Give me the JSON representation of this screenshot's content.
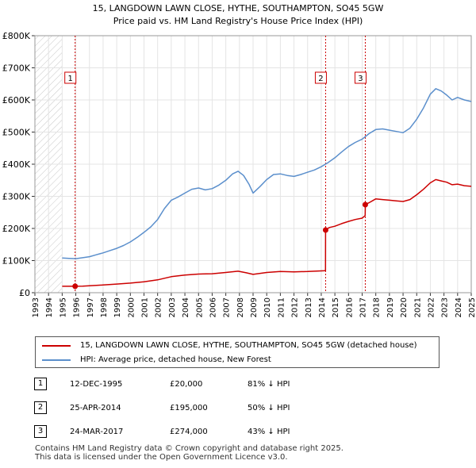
{
  "chart_data": {
    "type": "line",
    "title": "15, LANGDOWN LAWN CLOSE, HYTHE, SOUTHAMPTON, SO45 5GW",
    "subtitle": "Price paid vs. HM Land Registry's House Price Index (HPI)",
    "xlim": [
      1993,
      2025
    ],
    "ylim": [
      0,
      800000
    ],
    "y_ticks": [
      {
        "value": 0,
        "label": "£0"
      },
      {
        "value": 100000,
        "label": "£100K"
      },
      {
        "value": 200000,
        "label": "£200K"
      },
      {
        "value": 300000,
        "label": "£300K"
      },
      {
        "value": 400000,
        "label": "£400K"
      },
      {
        "value": 500000,
        "label": "£500K"
      },
      {
        "value": 600000,
        "label": "£600K"
      },
      {
        "value": 700000,
        "label": "£700K"
      },
      {
        "value": 800000,
        "label": "£800K"
      }
    ],
    "x_ticks": [
      "1993",
      "1994",
      "1995",
      "1996",
      "1997",
      "1998",
      "1999",
      "2000",
      "2001",
      "2002",
      "2003",
      "2004",
      "2005",
      "2006",
      "2007",
      "2008",
      "2009",
      "2010",
      "2011",
      "2012",
      "2013",
      "2014",
      "2015",
      "2016",
      "2017",
      "2018",
      "2019",
      "2020",
      "2021",
      "2022",
      "2023",
      "2024",
      "2025"
    ],
    "hatch_range": [
      1993,
      1995.0
    ],
    "series": [
      {
        "name": "HPI: Average price, detached house, New Forest",
        "color": "#5b8fcc",
        "points": [
          [
            1995.0,
            108000
          ],
          [
            1995.5,
            107000
          ],
          [
            1996.0,
            106000
          ],
          [
            1996.5,
            109000
          ],
          [
            1997.0,
            112000
          ],
          [
            1997.5,
            118000
          ],
          [
            1998.0,
            124000
          ],
          [
            1998.5,
            131000
          ],
          [
            1999.0,
            138000
          ],
          [
            1999.5,
            147000
          ],
          [
            2000.0,
            158000
          ],
          [
            2000.5,
            172000
          ],
          [
            2001.0,
            188000
          ],
          [
            2001.5,
            205000
          ],
          [
            2002.0,
            228000
          ],
          [
            2002.5,
            262000
          ],
          [
            2003.0,
            288000
          ],
          [
            2003.5,
            298000
          ],
          [
            2004.0,
            310000
          ],
          [
            2004.5,
            322000
          ],
          [
            2005.0,
            326000
          ],
          [
            2005.5,
            320000
          ],
          [
            2006.0,
            324000
          ],
          [
            2006.5,
            335000
          ],
          [
            2007.0,
            350000
          ],
          [
            2007.5,
            370000
          ],
          [
            2007.9,
            378000
          ],
          [
            2008.3,
            365000
          ],
          [
            2008.7,
            338000
          ],
          [
            2009.0,
            310000
          ],
          [
            2009.5,
            330000
          ],
          [
            2010.0,
            352000
          ],
          [
            2010.5,
            368000
          ],
          [
            2011.0,
            370000
          ],
          [
            2011.5,
            365000
          ],
          [
            2012.0,
            362000
          ],
          [
            2012.5,
            368000
          ],
          [
            2013.0,
            375000
          ],
          [
            2013.5,
            382000
          ],
          [
            2014.0,
            392000
          ],
          [
            2014.5,
            405000
          ],
          [
            2015.0,
            420000
          ],
          [
            2015.5,
            438000
          ],
          [
            2016.0,
            455000
          ],
          [
            2016.5,
            468000
          ],
          [
            2017.0,
            478000
          ],
          [
            2017.5,
            495000
          ],
          [
            2018.0,
            508000
          ],
          [
            2018.5,
            510000
          ],
          [
            2019.0,
            506000
          ],
          [
            2019.5,
            502000
          ],
          [
            2020.0,
            498000
          ],
          [
            2020.5,
            512000
          ],
          [
            2021.0,
            540000
          ],
          [
            2021.5,
            575000
          ],
          [
            2022.0,
            618000
          ],
          [
            2022.4,
            635000
          ],
          [
            2022.8,
            628000
          ],
          [
            2023.2,
            615000
          ],
          [
            2023.6,
            600000
          ],
          [
            2024.0,
            608000
          ],
          [
            2024.5,
            600000
          ],
          [
            2025.0,
            595000
          ]
        ]
      },
      {
        "name": "15, LANGDOWN LAWN CLOSE, HYTHE, SOUTHAMPTON, SO45 5GW (detached house)",
        "color": "#cc0000",
        "points": [
          [
            1995.0,
            20000
          ],
          [
            1995.92,
            20000
          ],
          [
            1996.5,
            20500
          ],
          [
            1997.0,
            21500
          ],
          [
            1998.0,
            24000
          ],
          [
            1999.0,
            27000
          ],
          [
            2000.0,
            30000
          ],
          [
            2001.0,
            34000
          ],
          [
            2002.0,
            40000
          ],
          [
            2003.0,
            50000
          ],
          [
            2004.0,
            55000
          ],
          [
            2005.0,
            58000
          ],
          [
            2006.0,
            59000
          ],
          [
            2007.0,
            63000
          ],
          [
            2007.9,
            67000
          ],
          [
            2008.5,
            62000
          ],
          [
            2009.0,
            57000
          ],
          [
            2010.0,
            63000
          ],
          [
            2011.0,
            66000
          ],
          [
            2012.0,
            65000
          ],
          [
            2013.0,
            66000
          ],
          [
            2014.0,
            68000
          ],
          [
            2014.31,
            68500
          ],
          [
            2014.32,
            195000
          ],
          [
            2014.6,
            203000
          ],
          [
            2015.0,
            207000
          ],
          [
            2015.5,
            215000
          ],
          [
            2016.0,
            222000
          ],
          [
            2016.5,
            228000
          ],
          [
            2017.0,
            232000
          ],
          [
            2017.22,
            240000
          ],
          [
            2017.23,
            274000
          ],
          [
            2017.5,
            280000
          ],
          [
            2018.0,
            292000
          ],
          [
            2018.5,
            290000
          ],
          [
            2019.0,
            288000
          ],
          [
            2019.5,
            286000
          ],
          [
            2020.0,
            284000
          ],
          [
            2020.5,
            290000
          ],
          [
            2021.0,
            305000
          ],
          [
            2021.5,
            322000
          ],
          [
            2022.0,
            342000
          ],
          [
            2022.4,
            352000
          ],
          [
            2022.8,
            348000
          ],
          [
            2023.2,
            344000
          ],
          [
            2023.6,
            336000
          ],
          [
            2024.0,
            338000
          ],
          [
            2024.5,
            333000
          ],
          [
            2025.0,
            331000
          ]
        ]
      }
    ],
    "sales": [
      {
        "num": "1",
        "year": 1995.95,
        "price": 20000
      },
      {
        "num": "2",
        "year": 2014.32,
        "price": 195000
      },
      {
        "num": "3",
        "year": 2017.23,
        "price": 274000
      }
    ]
  },
  "legend": {
    "property_label": "15, LANGDOWN LAWN CLOSE, HYTHE, SOUTHAMPTON, SO45 5GW (detached house)",
    "hpi_label": "HPI: Average price, detached house, New Forest",
    "property_color": "#cc0000",
    "hpi_color": "#5b8fcc"
  },
  "sales_table": [
    {
      "num": "1",
      "date": "12-DEC-1995",
      "price": "£20,000",
      "hpi": "81% ↓ HPI"
    },
    {
      "num": "2",
      "date": "25-APR-2014",
      "price": "£195,000",
      "hpi": "50% ↓ HPI"
    },
    {
      "num": "3",
      "date": "24-MAR-2017",
      "price": "£274,000",
      "hpi": "43% ↓ HPI"
    }
  ],
  "footer": {
    "line1": "Contains HM Land Registry data © Crown copyright and database right 2025.",
    "line2": "This data is licensed under the Open Government Licence v3.0."
  }
}
